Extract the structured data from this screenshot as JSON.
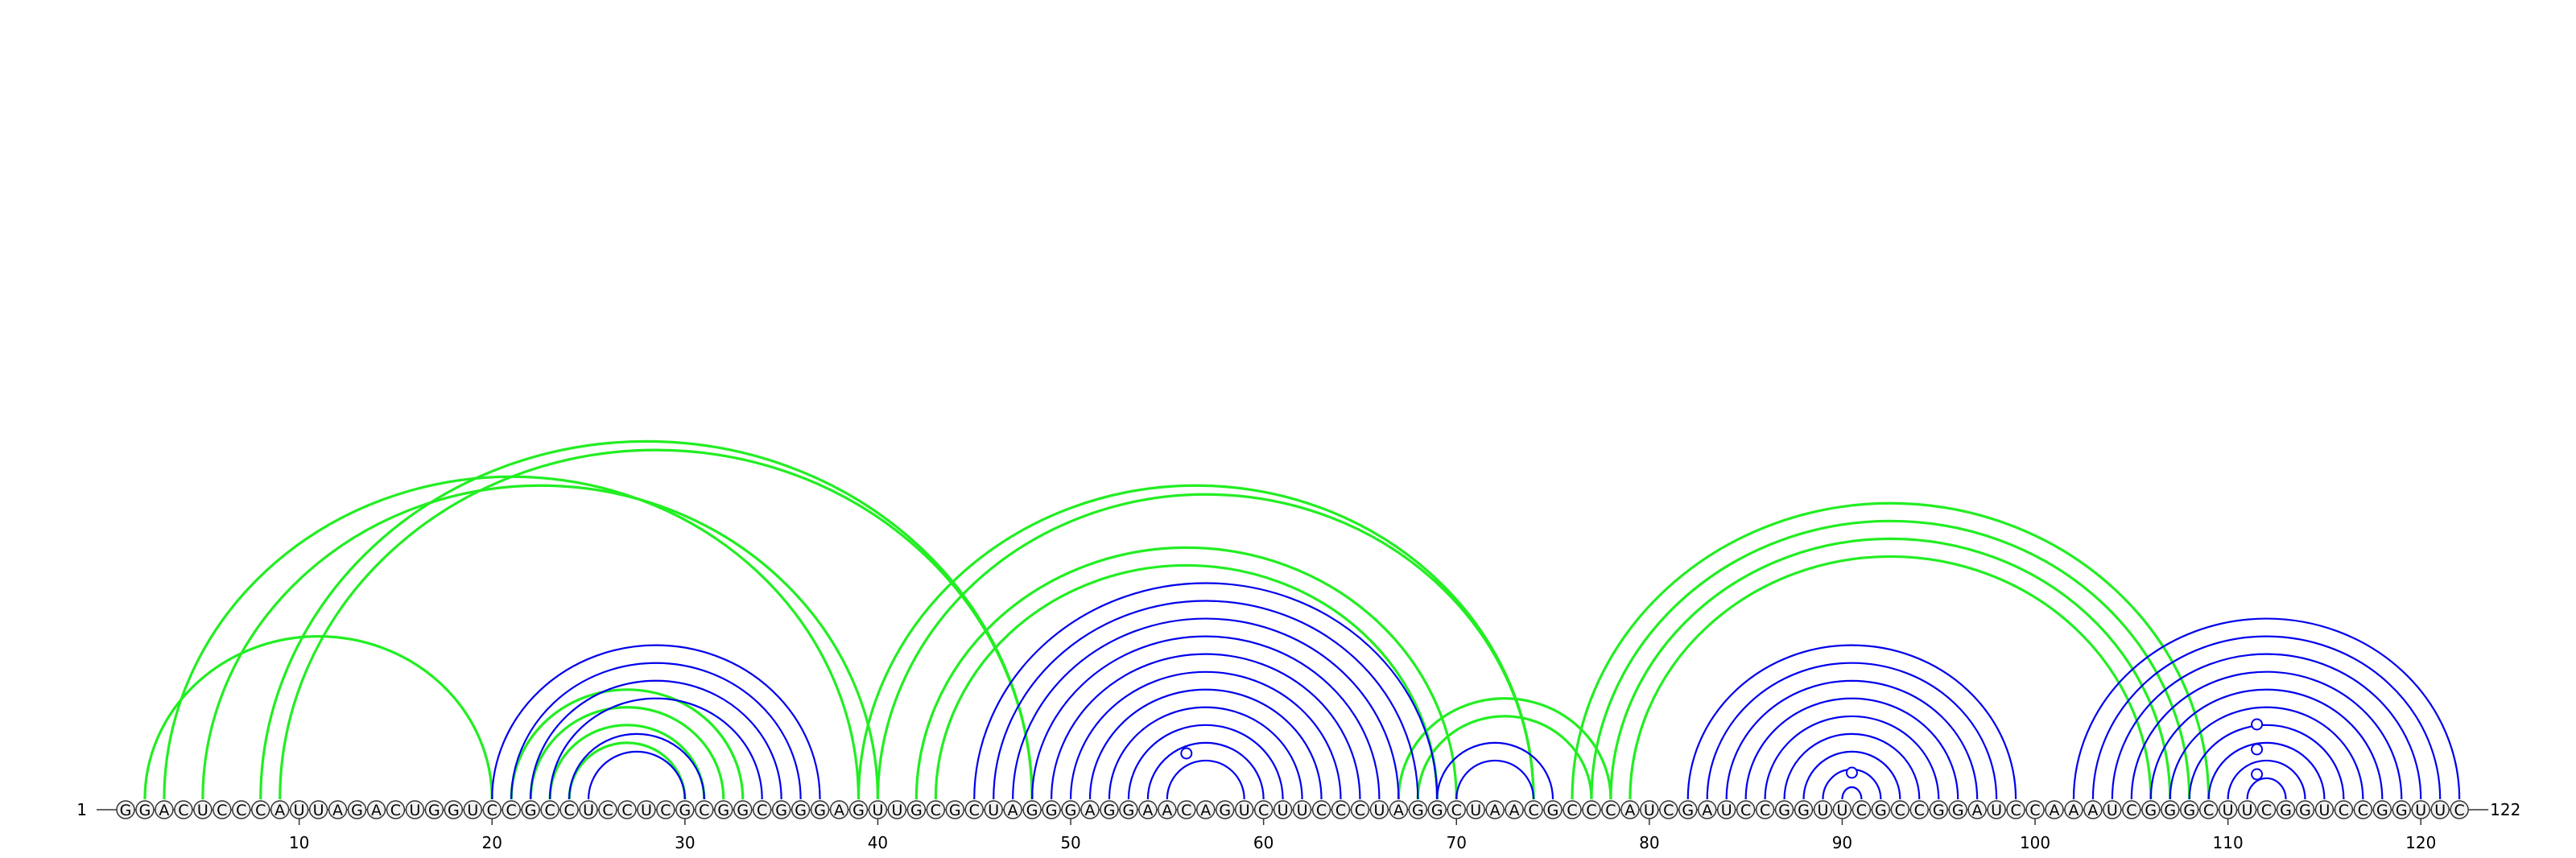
{
  "diagram": {
    "sequence": "GGACUCCCAUUAGACUGGUCCGCCUCCUCGCGGCGGGAGUUGCGCUAGGGAGGAACAGUCUUCCCUAGGCUAACGCCCAUCGAUCCGGUUCGCCGGAUCCAAAUCGGGCUUCGGUCCGGUUC",
    "start_label": "1",
    "end_label": "122",
    "tick_labels": [
      "10",
      "20",
      "30",
      "40",
      "50",
      "60",
      "70",
      "80",
      "90",
      "100",
      "110",
      "120"
    ],
    "colors": {
      "blue_arc": "#0000ee",
      "green_arc": "#22ee22",
      "nucleotide_fill": "#f2f2f2",
      "nucleotide_stroke": "#333333",
      "text": "#000000"
    },
    "blue_pairs": [
      [
        20,
        37
      ],
      [
        21,
        36
      ],
      [
        22,
        35
      ],
      [
        23,
        34
      ],
      [
        24,
        31
      ],
      [
        25,
        30
      ],
      [
        45,
        69
      ],
      [
        46,
        68
      ],
      [
        47,
        67
      ],
      [
        48,
        66
      ],
      [
        49,
        65
      ],
      [
        50,
        64
      ],
      [
        51,
        63
      ],
      [
        52,
        62
      ],
      [
        53,
        61
      ],
      [
        54,
        60
      ],
      [
        55,
        59
      ],
      [
        69,
        75
      ],
      [
        70,
        74
      ],
      [
        82,
        99
      ],
      [
        83,
        98
      ],
      [
        84,
        97
      ],
      [
        85,
        96
      ],
      [
        86,
        95
      ],
      [
        87,
        94
      ],
      [
        88,
        93
      ],
      [
        89,
        92
      ],
      [
        90,
        91
      ],
      [
        102,
        122
      ],
      [
        103,
        121
      ],
      [
        104,
        120
      ],
      [
        105,
        119
      ],
      [
        106,
        118
      ],
      [
        107,
        117
      ],
      [
        108,
        116
      ],
      [
        109,
        115
      ],
      [
        110,
        114
      ],
      [
        111,
        113
      ]
    ],
    "green_pairs": [
      [
        2,
        20
      ],
      [
        3,
        39
      ],
      [
        5,
        40
      ],
      [
        8,
        48
      ],
      [
        9,
        48
      ],
      [
        21,
        33
      ],
      [
        22,
        32
      ],
      [
        23,
        31
      ],
      [
        24,
        30
      ],
      [
        39,
        74
      ],
      [
        40,
        74
      ],
      [
        42,
        70
      ],
      [
        43,
        69
      ],
      [
        67,
        78
      ],
      [
        68,
        77
      ],
      [
        76,
        109
      ],
      [
        77,
        108
      ],
      [
        78,
        107
      ],
      [
        79,
        106
      ]
    ],
    "loop_markers": [
      56,
      90,
      111,
      111,
      111
    ]
  }
}
